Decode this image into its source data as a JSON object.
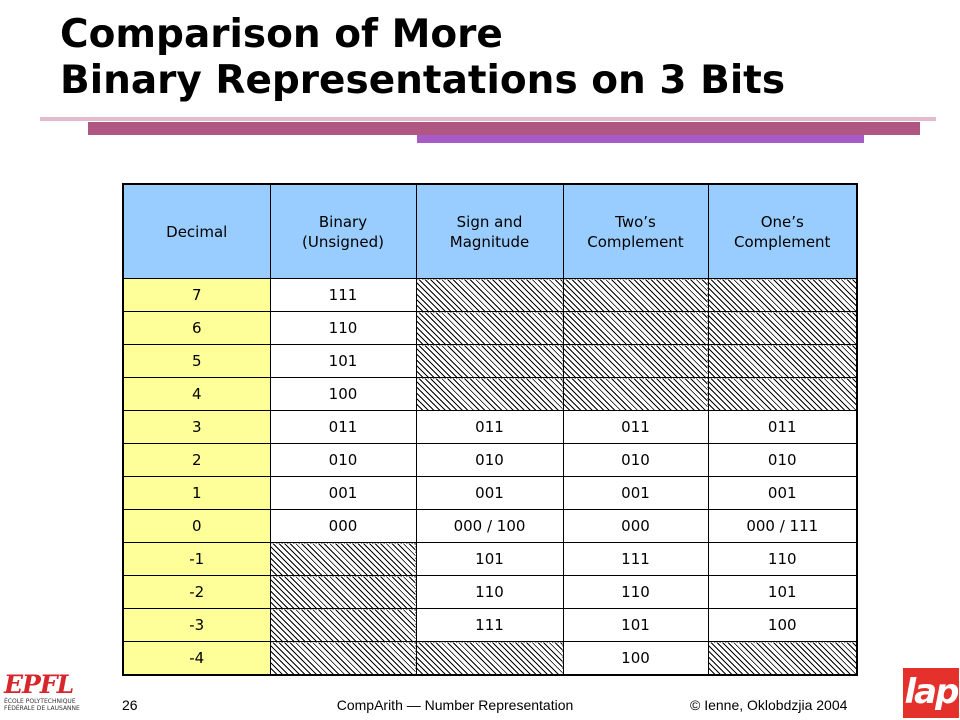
{
  "title": {
    "line1": "Comparison of More",
    "line2": "Binary Representations on 3 Bits"
  },
  "colors": {
    "header_bg": "#99ccff",
    "decimal_bg": "#ffff99",
    "bar_main": "#b05683",
    "bar_accent": "#a75bc6",
    "logo_red": "#e4312b"
  },
  "table": {
    "headers": [
      {
        "lines": [
          "Decimal"
        ]
      },
      {
        "lines": [
          "Binary",
          "(Unsigned)"
        ]
      },
      {
        "lines": [
          "Sign and",
          "Magnitude"
        ]
      },
      {
        "lines": [
          "Two’s",
          "Complement"
        ]
      },
      {
        "lines": [
          "One’s",
          "Complement"
        ]
      }
    ],
    "rows": [
      [
        "7",
        "111",
        null,
        null,
        null
      ],
      [
        "6",
        "110",
        null,
        null,
        null
      ],
      [
        "5",
        "101",
        null,
        null,
        null
      ],
      [
        "4",
        "100",
        null,
        null,
        null
      ],
      [
        "3",
        "011",
        "011",
        "011",
        "011"
      ],
      [
        "2",
        "010",
        "010",
        "010",
        "010"
      ],
      [
        "1",
        "001",
        "001",
        "001",
        "001"
      ],
      [
        "0",
        "000",
        "000 / 100",
        "000",
        "000 / 111"
      ],
      [
        "-1",
        null,
        "101",
        "111",
        "110"
      ],
      [
        "-2",
        null,
        "110",
        "110",
        "101"
      ],
      [
        "-3",
        null,
        "111",
        "101",
        "100"
      ],
      [
        "-4",
        null,
        null,
        "100",
        null
      ]
    ]
  },
  "footer": {
    "slide_number": "26",
    "center": "CompArith — Number Representation",
    "right": "© Ienne, Oklobdzjia 2004"
  },
  "logos": {
    "epfl": {
      "mark": "EPFL",
      "line1": "ÉCOLE POLYTECHNIQUE",
      "line2": "FÉDÉRALE DE LAUSANNE"
    },
    "lap": {
      "mark": "lap"
    }
  }
}
